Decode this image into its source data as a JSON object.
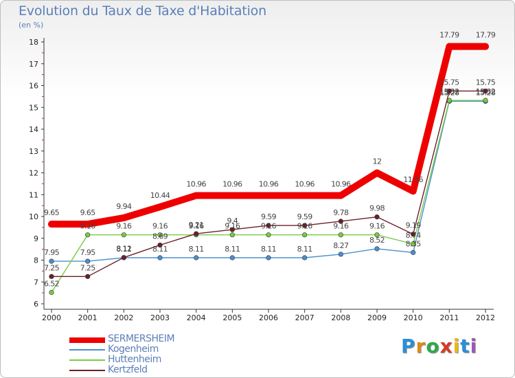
{
  "chart_data": {
    "type": "line",
    "title": "Evolution du Taux de Taxe d'Habitation",
    "subtitle": "(en %)",
    "x": [
      2000,
      2001,
      2002,
      2003,
      2004,
      2005,
      2006,
      2007,
      2008,
      2009,
      2010,
      2011,
      2012
    ],
    "x_tick_labels": [
      "2000",
      "2001",
      "2002",
      "2003",
      "2004",
      "2005",
      "2006",
      "2007",
      "2008",
      "2009",
      "2010",
      "2011",
      "2012"
    ],
    "ylim": [
      6,
      18
    ],
    "y_ticks": [
      6,
      7,
      8,
      9,
      10,
      11,
      12,
      13,
      14,
      15,
      16,
      17,
      18
    ],
    "y_tick_labels": [
      "6",
      "7",
      "8",
      "9",
      "10",
      "11",
      "12",
      "13",
      "14",
      "15",
      "16",
      "17",
      "18"
    ],
    "grid": false,
    "legend_position": "bottom-left",
    "series": [
      {
        "name": "SERMERSHEIM",
        "color": "#ee0000",
        "values": [
          9.65,
          9.65,
          9.94,
          10.44,
          10.96,
          10.96,
          10.96,
          10.96,
          10.96,
          12,
          11.16,
          17.79,
          17.79
        ],
        "labels": [
          "9.65",
          "9.65",
          "9.94",
          "10.44",
          "10.96",
          "10.96",
          "10.96",
          "10.96",
          "10.96",
          "12",
          "11.16",
          "17.79",
          "17.79"
        ]
      },
      {
        "name": "Kogenheim",
        "color": "#4a8fcf",
        "values": [
          7.95,
          7.95,
          8.11,
          8.11,
          8.11,
          8.11,
          8.11,
          8.11,
          8.27,
          8.52,
          8.35,
          15.28,
          15.28
        ],
        "labels": [
          "7.95",
          "7.95",
          "8.11",
          "8.11",
          "8.11",
          "8.11",
          "8.11",
          "8.11",
          "8.27",
          "8.52",
          "8.35",
          "15.28",
          "15.28"
        ]
      },
      {
        "name": "Huttenheim",
        "color": "#77cc44",
        "values": [
          6.52,
          9.16,
          9.16,
          9.16,
          9.16,
          9.16,
          9.16,
          9.16,
          9.16,
          9.16,
          8.74,
          15.32,
          15.32
        ],
        "labels": [
          "6.52",
          "9.16",
          "9.16",
          "9.16",
          "9.16",
          "9.16",
          "9.16",
          "9.16",
          "9.16",
          "9.16",
          "8.74",
          "15.32",
          "15.32"
        ]
      },
      {
        "name": "Kertzfeld",
        "color": "#6b1f2a",
        "values": [
          7.25,
          7.25,
          8.12,
          8.69,
          9.21,
          9.4,
          9.59,
          9.59,
          9.78,
          9.98,
          9.19,
          15.75,
          15.75
        ],
        "labels": [
          "7.25",
          "7.25",
          "8.12",
          "8.69",
          "9.21",
          "9.4",
          "9.59",
          "9.59",
          "9.78",
          "9.98",
          "9.19",
          "15.75",
          "15.75"
        ]
      }
    ]
  },
  "logo": {
    "letters": [
      "P",
      "r",
      "o",
      "x",
      "i",
      "t",
      "i"
    ],
    "colors": [
      "#2a8fd6",
      "#e0891b",
      "#2fa84a",
      "#d63a2a",
      "#e5b81f",
      "#2a8fd6",
      "#9b59b6"
    ]
  }
}
